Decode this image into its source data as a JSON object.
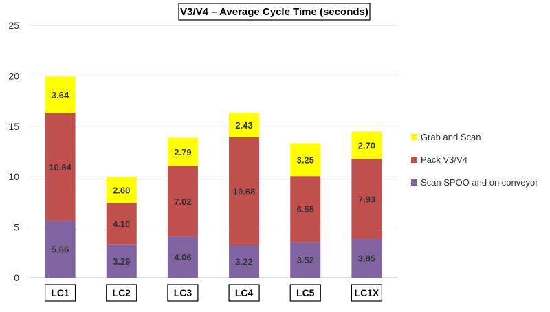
{
  "chart_data": {
    "type": "bar",
    "stacked": true,
    "title": "V3/V4 – Average Cycle Time (seconds)",
    "xlabel": "",
    "ylabel": "",
    "ylim": [
      0,
      25
    ],
    "yticks": [
      0,
      5,
      10,
      15,
      20,
      25
    ],
    "grid": true,
    "legend_position": "right",
    "categories": [
      "LC1",
      "LC2",
      "LC3",
      "LC4",
      "LC5",
      "LC1X"
    ],
    "series": [
      {
        "name": "Scan SPOO and on conveyor",
        "color": "#8064a2",
        "values": [
          5.66,
          3.29,
          4.06,
          3.22,
          3.52,
          3.85
        ],
        "labels": [
          "5.66",
          "3.29",
          "4.06",
          "3.22",
          "3.52",
          "3.85"
        ]
      },
      {
        "name": "Pack V3/V4",
        "color": "#c0504d",
        "values": [
          10.64,
          4.1,
          7.02,
          10.68,
          6.55,
          7.93
        ],
        "labels": [
          "10.64",
          "4.10",
          "7.02",
          "10.68",
          "6.55",
          "7.93"
        ]
      },
      {
        "name": "Grab and Scan",
        "color": "#ffff00",
        "values": [
          3.64,
          2.6,
          2.79,
          2.43,
          3.25,
          2.7
        ],
        "labels": [
          "3.64",
          "2.60",
          "2.79",
          "2.43",
          "3.25",
          "2.70"
        ]
      }
    ],
    "legend_order": [
      "Grab and Scan",
      "Pack V3/V4",
      "Scan SPOO and on conveyor"
    ]
  }
}
